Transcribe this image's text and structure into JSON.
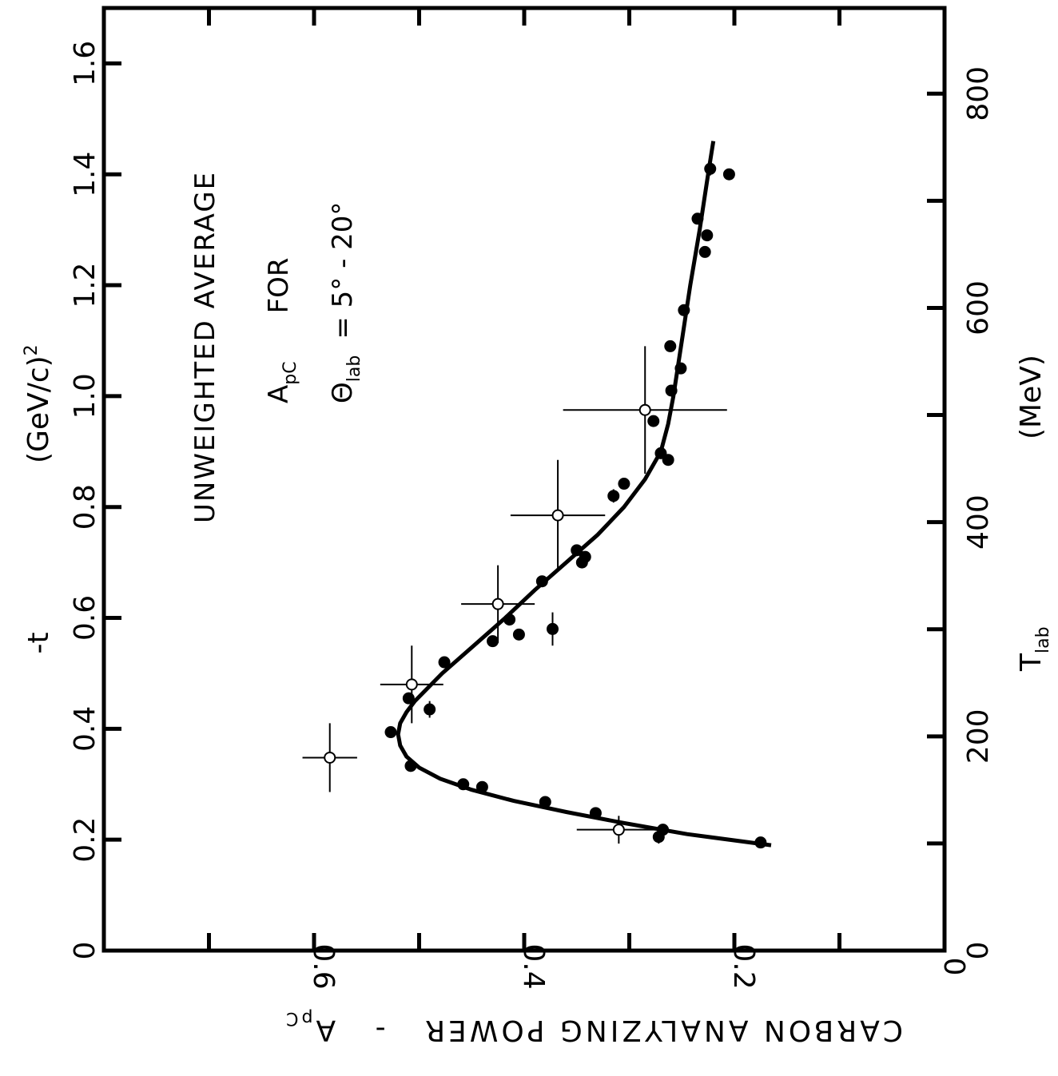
{
  "chart_data": {
    "type": "scatter",
    "orientation": "rotated-90-clockwise",
    "ylabel": "CARBON ANALYZING POWER",
    "ylabel_symbol": "A",
    "ylabel_sub": "pC",
    "ylabel_sep": "-",
    "x_bottom_label": "T",
    "x_bottom_label_sub": "lab",
    "x_bottom_unit": "(MeV)",
    "x_top_label": "-t",
    "x_top_unit": "(GeV/c)",
    "x_top_unit_sup": "2",
    "annotation": {
      "line1": "UNWEIGHTED AVERAGE",
      "line2_symbol": "A",
      "line2_sub": "pC",
      "line2_rest": "FOR",
      "line3_symbol": "Θ",
      "line3_sub": "lab",
      "line3_rest": "= 5° - 20°"
    },
    "y_ticks": [
      "0.2",
      "0.4",
      "0.6"
    ],
    "y_zero_label": "0",
    "x_bottom_ticks": [
      "0",
      "200",
      "400",
      "600",
      "800"
    ],
    "x_top_ticks": [
      "0",
      "0.2",
      "0.4",
      "0.6",
      "0.8",
      "1.0",
      "1.2",
      "1.4",
      "1.6"
    ],
    "ylim": [
      0,
      0.8
    ],
    "xlim_t": [
      0,
      1.7
    ],
    "xlim_T": [
      0,
      880
    ],
    "grid": false,
    "series": [
      {
        "marker": "filled-circle",
        "points": [
          {
            "t": 0.195,
            "y": 0.175
          },
          {
            "t": 0.205,
            "y": 0.272,
            "xerr": 0.012
          },
          {
            "t": 0.218,
            "y": 0.268
          },
          {
            "t": 0.248,
            "y": 0.332
          },
          {
            "t": 0.268,
            "y": 0.38
          },
          {
            "t": 0.295,
            "y": 0.44
          },
          {
            "t": 0.3,
            "y": 0.458
          },
          {
            "t": 0.333,
            "y": 0.508
          },
          {
            "t": 0.394,
            "y": 0.527
          },
          {
            "t": 0.435,
            "y": 0.49,
            "xerr": 0.015
          },
          {
            "t": 0.455,
            "y": 0.51
          },
          {
            "t": 0.52,
            "y": 0.476
          },
          {
            "t": 0.558,
            "y": 0.43
          },
          {
            "t": 0.57,
            "y": 0.405
          },
          {
            "t": 0.58,
            "y": 0.373,
            "xerr": 0.03
          },
          {
            "t": 0.597,
            "y": 0.414
          },
          {
            "t": 0.666,
            "y": 0.383
          },
          {
            "t": 0.7,
            "y": 0.345
          },
          {
            "t": 0.71,
            "y": 0.342
          },
          {
            "t": 0.722,
            "y": 0.35
          },
          {
            "t": 0.82,
            "y": 0.315,
            "xerr": 0.012
          },
          {
            "t": 0.842,
            "y": 0.305
          },
          {
            "t": 0.885,
            "y": 0.263
          },
          {
            "t": 0.897,
            "y": 0.27
          },
          {
            "t": 0.955,
            "y": 0.277
          },
          {
            "t": 1.01,
            "y": 0.26
          },
          {
            "t": 1.05,
            "y": 0.251
          },
          {
            "t": 1.09,
            "y": 0.261,
            "xerr": 0.01
          },
          {
            "t": 1.155,
            "y": 0.248
          },
          {
            "t": 1.26,
            "y": 0.228
          },
          {
            "t": 1.29,
            "y": 0.226,
            "xerr": 0.01
          },
          {
            "t": 1.32,
            "y": 0.235
          },
          {
            "t": 1.4,
            "y": 0.205
          },
          {
            "t": 1.41,
            "y": 0.223,
            "xerr": 0.012
          }
        ]
      },
      {
        "marker": "open-circle",
        "points": [
          {
            "t": 0.218,
            "y": 0.31,
            "xerr": 0.025,
            "yerr": 0.04
          },
          {
            "t": 0.348,
            "y": 0.585,
            "xerr": 0.062,
            "yerr": 0.026
          },
          {
            "t": 0.48,
            "y": 0.507,
            "xerr": 0.07,
            "yerr": 0.03
          },
          {
            "t": 0.625,
            "y": 0.425,
            "xerr": 0.07,
            "yerr": 0.035
          },
          {
            "t": 0.785,
            "y": 0.368,
            "xerr": 0.1,
            "yerr": 0.045
          },
          {
            "t": 0.975,
            "y": 0.285,
            "xerr": 0.115,
            "yerr": 0.078
          }
        ]
      }
    ],
    "curve": [
      [
        0.19,
        0.165
      ],
      [
        0.21,
        0.245
      ],
      [
        0.23,
        0.305
      ],
      [
        0.25,
        0.36
      ],
      [
        0.27,
        0.41
      ],
      [
        0.29,
        0.45
      ],
      [
        0.31,
        0.48
      ],
      [
        0.33,
        0.5
      ],
      [
        0.35,
        0.512
      ],
      [
        0.37,
        0.518
      ],
      [
        0.39,
        0.52
      ],
      [
        0.41,
        0.518
      ],
      [
        0.43,
        0.512
      ],
      [
        0.45,
        0.504
      ],
      [
        0.5,
        0.478
      ],
      [
        0.55,
        0.448
      ],
      [
        0.6,
        0.418
      ],
      [
        0.65,
        0.39
      ],
      [
        0.7,
        0.36
      ],
      [
        0.75,
        0.33
      ],
      [
        0.8,
        0.305
      ],
      [
        0.85,
        0.285
      ],
      [
        0.9,
        0.27
      ],
      [
        0.95,
        0.263
      ],
      [
        1.0,
        0.258
      ],
      [
        1.1,
        0.25
      ],
      [
        1.2,
        0.242
      ],
      [
        1.3,
        0.233
      ],
      [
        1.4,
        0.225
      ],
      [
        1.46,
        0.22
      ]
    ]
  }
}
